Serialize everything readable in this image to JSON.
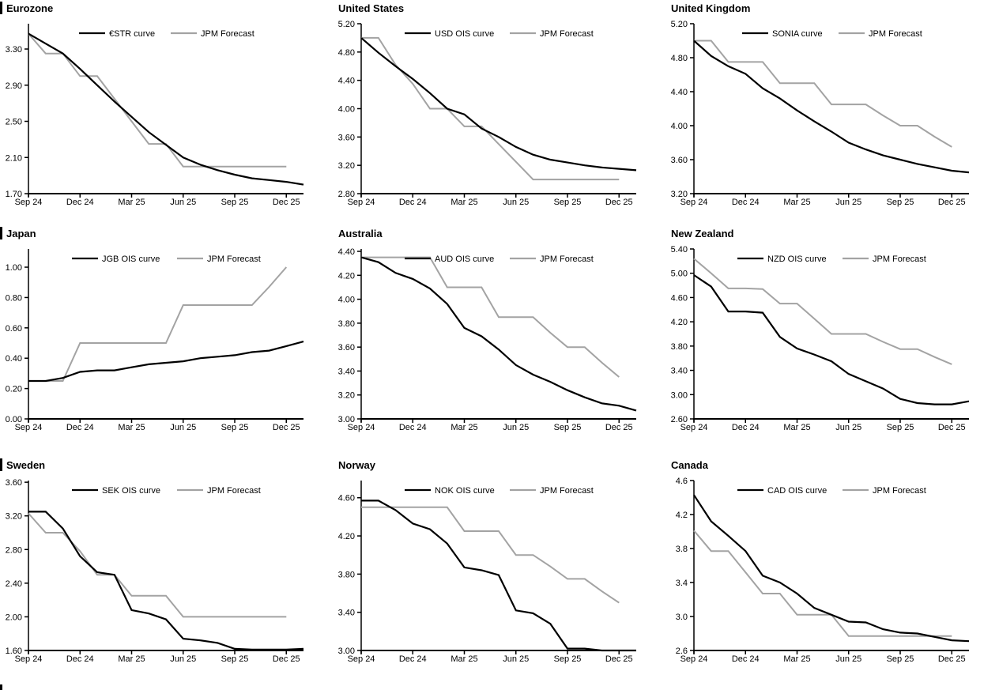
{
  "page": {
    "background": "#ffffff",
    "description": "3x3 grid of money-market rate curves vs JPM forecasts"
  },
  "colors": {
    "curve": "#000000",
    "forecast": "#a3a3a3",
    "axis": "#000000",
    "text": "#000000",
    "marker": "#000000"
  },
  "chart_defaults": {
    "grid": false,
    "legend_position": "top-center",
    "forecast_label": "JPM Forecast"
  },
  "x_axis": {
    "tick_labels": [
      "Sep 24",
      "Dec 24",
      "Mar 25",
      "Jun 25",
      "Sep 25",
      "Dec 25"
    ],
    "tick_month_indices": [
      0,
      3,
      6,
      9,
      12,
      15
    ],
    "months": [
      "Sep 24",
      "Oct 24",
      "Nov 24",
      "Dec 24",
      "Jan 25",
      "Feb 25",
      "Mar 25",
      "Apr 25",
      "May 25",
      "Jun 25",
      "Jul 25",
      "Aug 25",
      "Sep 25",
      "Oct 25",
      "Nov 25",
      "Dec 25"
    ],
    "note": "curve series contain one extra monthly point drawn just past the Dec 25 tick; forecast series end at Dec 25"
  },
  "chart_data": [
    {
      "type": "line",
      "title": "Eurozone",
      "section_marker": true,
      "ylim": [
        1.7,
        3.58
      ],
      "yticks": [
        1.7,
        2.1,
        2.5,
        2.9,
        3.3
      ],
      "ytick_labels": [
        "1.70",
        "2.10",
        "2.50",
        "2.90",
        "3.30"
      ],
      "series": [
        {
          "name": "€STR curve",
          "color_key": "curve",
          "values": [
            3.47,
            3.36,
            3.25,
            3.08,
            2.9,
            2.72,
            2.55,
            2.38,
            2.24,
            2.1,
            2.02,
            1.96,
            1.91,
            1.87,
            1.85,
            1.83,
            1.8
          ]
        },
        {
          "name": "JPM Forecast",
          "color_key": "forecast",
          "values": [
            3.47,
            3.25,
            3.25,
            3.0,
            3.0,
            2.75,
            2.5,
            2.25,
            2.25,
            2.0,
            2.0,
            2.0,
            2.0,
            2.0,
            2.0,
            2.0
          ]
        }
      ]
    },
    {
      "type": "line",
      "title": "United States",
      "section_marker": false,
      "ylim": [
        2.8,
        5.2
      ],
      "yticks": [
        2.8,
        3.2,
        3.6,
        4.0,
        4.4,
        4.8,
        5.2
      ],
      "ytick_labels": [
        "2.80",
        "3.20",
        "3.60",
        "4.00",
        "4.40",
        "4.80",
        "5.20"
      ],
      "series": [
        {
          "name": "USD OIS curve",
          "color_key": "curve",
          "values": [
            5.0,
            4.79,
            4.6,
            4.42,
            4.22,
            4.0,
            3.92,
            3.72,
            3.6,
            3.46,
            3.35,
            3.28,
            3.24,
            3.2,
            3.17,
            3.15,
            3.13
          ]
        },
        {
          "name": "JPM Forecast",
          "color_key": "forecast",
          "values": [
            5.0,
            5.0,
            4.62,
            4.35,
            4.0,
            4.0,
            3.75,
            3.75,
            3.5,
            3.25,
            3.0,
            3.0,
            3.0,
            3.0,
            3.0,
            3.0
          ]
        }
      ]
    },
    {
      "type": "line",
      "title": "United Kingdom",
      "section_marker": false,
      "ylim": [
        3.2,
        5.2
      ],
      "yticks": [
        3.2,
        3.6,
        4.0,
        4.4,
        4.8,
        5.2
      ],
      "ytick_labels": [
        "3.20",
        "3.60",
        "4.00",
        "4.40",
        "4.80",
        "5.20"
      ],
      "series": [
        {
          "name": "SONIA curve",
          "color_key": "curve",
          "values": [
            5.0,
            4.82,
            4.7,
            4.61,
            4.44,
            4.32,
            4.18,
            4.05,
            3.93,
            3.8,
            3.72,
            3.65,
            3.6,
            3.55,
            3.51,
            3.47,
            3.45
          ]
        },
        {
          "name": "JPM Forecast",
          "color_key": "forecast",
          "values": [
            5.0,
            5.0,
            4.75,
            4.75,
            4.75,
            4.5,
            4.5,
            4.5,
            4.25,
            4.25,
            4.25,
            4.12,
            4.0,
            4.0,
            3.87,
            3.75
          ]
        }
      ]
    },
    {
      "type": "line",
      "title": "Japan",
      "section_marker": true,
      "ylim": [
        0.0,
        1.12
      ],
      "yticks": [
        0.0,
        0.2,
        0.4,
        0.6,
        0.8,
        1.0
      ],
      "ytick_labels": [
        "0.00",
        "0.20",
        "0.40",
        "0.60",
        "0.80",
        "1.00"
      ],
      "series": [
        {
          "name": "JGB OIS curve",
          "color_key": "curve",
          "values": [
            0.25,
            0.25,
            0.27,
            0.31,
            0.32,
            0.32,
            0.34,
            0.36,
            0.37,
            0.38,
            0.4,
            0.41,
            0.42,
            0.44,
            0.45,
            0.48,
            0.51
          ]
        },
        {
          "name": "JPM Forecast",
          "color_key": "forecast",
          "values": [
            0.25,
            0.25,
            0.25,
            0.5,
            0.5,
            0.5,
            0.5,
            0.5,
            0.5,
            0.75,
            0.75,
            0.75,
            0.75,
            0.75,
            0.87,
            1.0
          ]
        }
      ]
    },
    {
      "type": "line",
      "title": "Australia",
      "section_marker": false,
      "ylim": [
        3.0,
        4.42
      ],
      "yticks": [
        3.0,
        3.2,
        3.4,
        3.6,
        3.8,
        4.0,
        4.2,
        4.4
      ],
      "ytick_labels": [
        "3.00",
        "3.20",
        "3.40",
        "3.60",
        "3.80",
        "4.00",
        "4.20",
        "4.40"
      ],
      "series": [
        {
          "name": "AUD OIS curve",
          "color_key": "curve",
          "values": [
            4.35,
            4.31,
            4.22,
            4.17,
            4.09,
            3.96,
            3.76,
            3.69,
            3.58,
            3.45,
            3.37,
            3.31,
            3.24,
            3.18,
            3.13,
            3.11,
            3.07
          ]
        },
        {
          "name": "JPM Forecast",
          "color_key": "forecast",
          "values": [
            4.35,
            4.35,
            4.35,
            4.35,
            4.35,
            4.1,
            4.1,
            4.1,
            3.85,
            3.85,
            3.85,
            3.72,
            3.6,
            3.6,
            3.47,
            3.35
          ]
        }
      ]
    },
    {
      "type": "line",
      "title": "New Zealand",
      "section_marker": false,
      "ylim": [
        2.6,
        5.4
      ],
      "yticks": [
        2.6,
        3.0,
        3.4,
        3.8,
        4.2,
        4.6,
        5.0,
        5.4
      ],
      "ytick_labels": [
        "2.60",
        "3.00",
        "3.40",
        "3.80",
        "4.20",
        "4.60",
        "5.00",
        "5.40"
      ],
      "series": [
        {
          "name": "NZD OIS curve",
          "color_key": "curve",
          "values": [
            4.97,
            4.78,
            4.37,
            4.37,
            4.35,
            3.95,
            3.76,
            3.66,
            3.55,
            3.34,
            3.22,
            3.1,
            2.93,
            2.86,
            2.84,
            2.84,
            2.89
          ]
        },
        {
          "name": "JPM Forecast",
          "color_key": "forecast",
          "values": [
            5.24,
            5.0,
            4.75,
            4.75,
            4.74,
            4.5,
            4.5,
            4.25,
            4.0,
            4.0,
            4.0,
            3.87,
            3.75,
            3.75,
            3.62,
            3.5
          ]
        }
      ]
    },
    {
      "type": "line",
      "title": "Sweden",
      "section_marker": true,
      "ylim": [
        1.6,
        3.62
      ],
      "yticks": [
        1.6,
        2.0,
        2.4,
        2.8,
        3.2,
        3.6
      ],
      "ytick_labels": [
        "1.60",
        "2.00",
        "2.40",
        "2.80",
        "3.20",
        "3.60"
      ],
      "series": [
        {
          "name": "SEK OIS curve",
          "color_key": "curve",
          "values": [
            3.25,
            3.25,
            3.05,
            2.72,
            2.53,
            2.5,
            2.08,
            2.04,
            1.97,
            1.74,
            1.72,
            1.69,
            1.62,
            1.61,
            1.61,
            1.61,
            1.62
          ]
        },
        {
          "name": "JPM Forecast",
          "color_key": "forecast",
          "values": [
            3.23,
            3.0,
            3.0,
            2.78,
            2.5,
            2.5,
            2.25,
            2.25,
            2.25,
            2.0,
            2.0,
            2.0,
            2.0,
            2.0,
            2.0,
            2.0
          ]
        }
      ]
    },
    {
      "type": "line",
      "title": "Norway",
      "section_marker": false,
      "ylim": [
        3.0,
        4.78
      ],
      "yticks": [
        3.0,
        3.4,
        3.8,
        4.2,
        4.6
      ],
      "ytick_labels": [
        "3.00",
        "3.40",
        "3.80",
        "4.20",
        "4.60"
      ],
      "series": [
        {
          "name": "NOK OIS curve",
          "color_key": "curve",
          "values": [
            4.57,
            4.57,
            4.47,
            4.33,
            4.27,
            4.12,
            3.87,
            3.84,
            3.79,
            3.42,
            3.39,
            3.28,
            3.02,
            3.02,
            3.0,
            3.0,
            3.0
          ]
        },
        {
          "name": "JPM Forecast",
          "color_key": "forecast",
          "values": [
            4.5,
            4.5,
            4.5,
            4.5,
            4.5,
            4.5,
            4.25,
            4.25,
            4.25,
            4.0,
            4.0,
            3.88,
            3.75,
            3.75,
            3.62,
            3.5
          ]
        }
      ]
    },
    {
      "type": "line",
      "title": "Canada",
      "section_marker": false,
      "ylim": [
        2.6,
        4.6
      ],
      "yticks": [
        2.6,
        3.0,
        3.4,
        3.8,
        4.2,
        4.6
      ],
      "ytick_labels": [
        "2.6",
        "3.0",
        "3.4",
        "3.8",
        "4.2",
        "4.6"
      ],
      "series": [
        {
          "name": "CAD OIS curve",
          "color_key": "curve",
          "values": [
            4.43,
            4.12,
            3.95,
            3.77,
            3.48,
            3.4,
            3.27,
            3.1,
            3.02,
            2.94,
            2.93,
            2.85,
            2.81,
            2.8,
            2.76,
            2.72,
            2.71
          ]
        },
        {
          "name": "JPM Forecast",
          "color_key": "forecast",
          "values": [
            4.01,
            3.77,
            3.77,
            3.52,
            3.27,
            3.27,
            3.02,
            3.02,
            3.02,
            2.77,
            2.77,
            2.77,
            2.77,
            2.77,
            2.77,
            2.77
          ]
        }
      ]
    }
  ]
}
